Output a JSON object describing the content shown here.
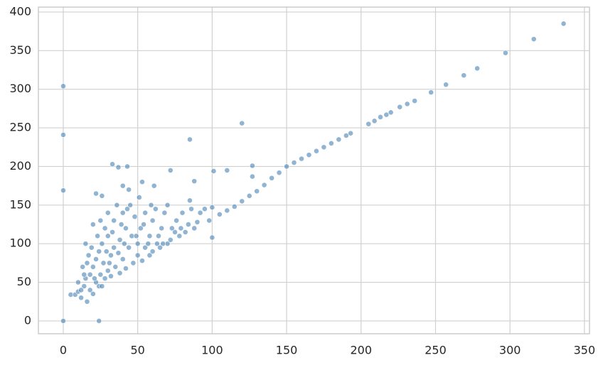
{
  "chart_data": {
    "type": "scatter",
    "x": [
      0,
      0,
      0,
      0,
      24,
      85,
      120,
      101,
      110,
      127,
      127,
      72,
      88,
      33,
      43,
      37,
      40,
      44,
      53,
      61,
      22,
      26,
      100,
      100,
      85,
      110,
      115,
      120,
      125,
      130,
      135,
      140,
      145,
      150,
      155,
      160,
      165,
      170,
      175,
      180,
      185,
      190,
      193,
      205,
      209,
      213,
      217,
      220,
      226,
      231,
      236,
      247,
      257,
      269,
      278,
      297,
      316,
      336,
      5,
      8,
      10,
      12,
      14,
      15,
      16,
      18,
      18,
      20,
      20,
      22,
      22,
      24,
      24,
      25,
      26,
      27,
      28,
      28,
      30,
      30,
      30,
      32,
      32,
      34,
      34,
      35,
      36,
      38,
      38,
      40,
      40,
      42,
      42,
      44,
      45,
      46,
      47,
      48,
      50,
      50,
      52,
      53,
      55,
      55,
      58,
      58,
      60,
      60,
      62,
      63,
      65,
      66,
      68,
      70,
      70,
      72,
      75,
      76,
      78,
      80,
      82,
      84,
      86,
      88,
      90,
      92,
      95,
      98,
      105,
      10,
      12,
      14,
      16,
      17,
      19,
      21,
      23,
      25,
      26,
      29,
      31,
      33,
      37,
      39,
      41,
      43,
      49,
      51,
      54,
      57,
      59,
      64,
      67,
      73,
      79,
      15,
      13,
      20
    ],
    "values": [
      304,
      241,
      169,
      0,
      0,
      235,
      256,
      194,
      195,
      201,
      187,
      195,
      181,
      203,
      200,
      199,
      175,
      170,
      180,
      175,
      165,
      162,
      108,
      147,
      156,
      143,
      148,
      155,
      162,
      168,
      176,
      185,
      192,
      200,
      205,
      210,
      215,
      220,
      225,
      230,
      235,
      240,
      243,
      255,
      259,
      264,
      267,
      270,
      277,
      281,
      285,
      296,
      306,
      318,
      327,
      347,
      365,
      385,
      34,
      34,
      38,
      30,
      45,
      55,
      25,
      60,
      40,
      70,
      35,
      80,
      50,
      90,
      45,
      60,
      100,
      75,
      55,
      120,
      110,
      65,
      140,
      85,
      58,
      95,
      130,
      70,
      150,
      105,
      62,
      80,
      140,
      120,
      68,
      95,
      150,
      110,
      75,
      135,
      85,
      100,
      120,
      78,
      140,
      95,
      110,
      85,
      130,
      90,
      145,
      100,
      95,
      120,
      140,
      100,
      150,
      105,
      115,
      130,
      110,
      140,
      115,
      125,
      145,
      120,
      128,
      140,
      145,
      130,
      138,
      50,
      40,
      60,
      75,
      85,
      95,
      55,
      110,
      130,
      45,
      90,
      75,
      115,
      88,
      125,
      100,
      145,
      110,
      160,
      125,
      100,
      150,
      110,
      100,
      120,
      120,
      100,
      70,
      125
    ],
    "color": "#4682b4",
    "xlim": [
      -16.7,
      353.4
    ],
    "ylim": [
      -16.6,
      406.4
    ],
    "xticks": [
      0,
      50,
      100,
      150,
      200,
      250,
      300,
      350
    ],
    "yticks": [
      0,
      50,
      100,
      150,
      200,
      250,
      300,
      350,
      400
    ],
    "grid": true
  }
}
